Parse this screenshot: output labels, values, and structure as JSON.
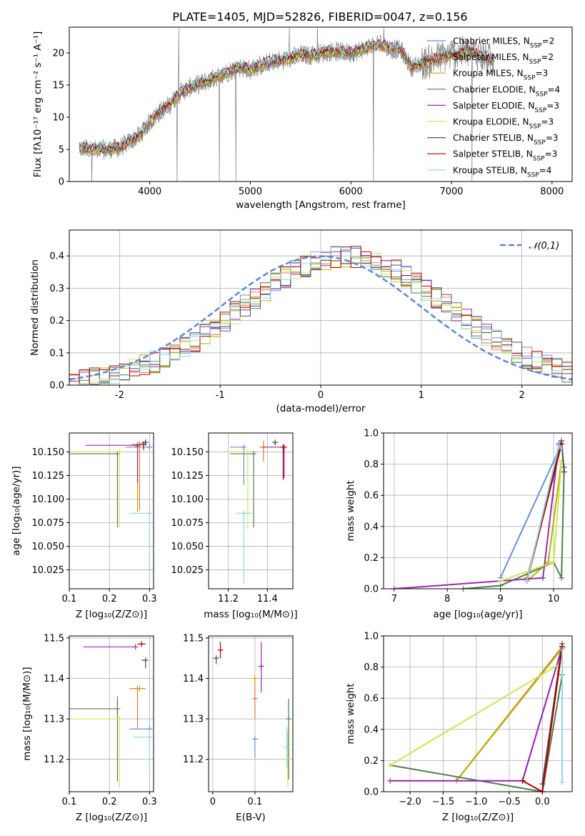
{
  "figure_title": "PLATE=1405, MJD=52826, FIBERID=0047, z=0.156",
  "colors": {
    "c1": "#6a8fd8",
    "c2": "#e07a3a",
    "c3": "#b8b000",
    "c4": "#4f7f4f",
    "c5": "#9c27b0",
    "c6": "#cde84a",
    "c7": "#505050",
    "c8": "#b00000",
    "c9": "#8fd6e6",
    "data": "#808080",
    "grid": "#b0b0b0",
    "normal": "#5b86d6"
  },
  "chart_data": [
    {
      "id": "spectrum",
      "type": "line",
      "xlabel": "wavelength [Angstrom, rest frame]",
      "ylabel": "Flux [fλ10⁻¹⁷ erg cm⁻² s⁻¹ A⁻¹]",
      "xlim": [
        3200,
        8200
      ],
      "ylim": [
        0,
        24
      ],
      "xticks": [
        4000,
        5000,
        6000,
        7000,
        8000
      ],
      "yticks": [
        0,
        5,
        10,
        15,
        20
      ],
      "grid": false,
      "legend": "top-right",
      "x": [
        3300,
        3500,
        3700,
        3900,
        4000,
        4100,
        4200,
        4300,
        4400,
        4500,
        4600,
        4700,
        4800,
        4900,
        5000,
        5200,
        5400,
        5500,
        5600,
        5800,
        6000,
        6200,
        6300,
        6400,
        6500,
        6600,
        6800,
        7000,
        7200,
        7400
      ],
      "model": [
        5.2,
        4.9,
        5.2,
        7.2,
        9.2,
        10.8,
        12.0,
        13.8,
        14.6,
        15.2,
        15.8,
        16.5,
        17.2,
        17.8,
        17.4,
        18.6,
        19.2,
        19.7,
        19.6,
        20.3,
        20.0,
        21.0,
        21.3,
        20.6,
        20.4,
        17.8,
        18.8,
        19.8,
        20.2,
        18.8
      ],
      "series": [
        {
          "name": "Chabrier MILES, N_SSP=2",
          "color_key": "c1"
        },
        {
          "name": "Salpeter MILES, N_SSP=2",
          "color_key": "c2"
        },
        {
          "name": "Kroupa MILES, N_SSP=3",
          "color_key": "c3"
        },
        {
          "name": "Chabrier ELODIE, N_SSP=4",
          "color_key": "c4"
        },
        {
          "name": "Salpeter ELODIE, N_SSP=3",
          "color_key": "c5"
        },
        {
          "name": "Kroupa ELODIE, N_SSP=3",
          "color_key": "c6"
        },
        {
          "name": "Chabrier STELIB, N_SSP=3",
          "color_key": "c7"
        },
        {
          "name": "Salpeter STELIB, N_SSP=3",
          "color_key": "c8"
        },
        {
          "name": "Kroupa STELIB, N_SSP=4",
          "color_key": "c9"
        }
      ]
    },
    {
      "id": "residuals",
      "type": "line",
      "xlabel": "(data-model)/error",
      "ylabel": "Normed distribution",
      "xlim": [
        -2.5,
        2.5
      ],
      "ylim": [
        0,
        0.48
      ],
      "xticks": [
        -2,
        -1,
        0,
        1,
        2
      ],
      "yticks": [
        0.0,
        0.1,
        0.2,
        0.3,
        0.4
      ],
      "grid": true,
      "legend": "top-right",
      "reference_label": "𝒩(0,1)",
      "bin_width": 0.1
    },
    {
      "id": "age_vs_Z",
      "type": "scatter",
      "xlabel": "Z [log₁₀(Z/Z⊙)]",
      "ylabel": "age  [log₁₀(age/yr)]",
      "xlim": [
        0.1,
        0.31
      ],
      "ylim": [
        10.005,
        10.17
      ],
      "xticks": [
        0.1,
        0.2,
        0.3
      ],
      "yticks": [
        10.025,
        10.05,
        10.075,
        10.1,
        10.125,
        10.15
      ],
      "ytick_labels": [
        "10.025",
        "10.050",
        "10.075",
        "10.100",
        "10.125",
        "10.150"
      ],
      "grid": true,
      "points": [
        {
          "color_key": "c1",
          "x": 0.3,
          "y": 10.155,
          "xerr": [
            0.06,
            0.0
          ],
          "yerr": [
            0.0,
            0.005
          ]
        },
        {
          "color_key": "c2",
          "x": 0.275,
          "y": 10.158,
          "xerr": [
            0.02,
            0.0
          ],
          "yerr": [
            0.07,
            0.0
          ]
        },
        {
          "color_key": "c3",
          "x": 0.27,
          "y": 10.156,
          "xerr": [
            0.0,
            0.0
          ],
          "yerr": [
            0.07,
            0.0
          ]
        },
        {
          "color_key": "c4",
          "x": 0.22,
          "y": 10.148,
          "xerr": [
            0.12,
            0.0
          ],
          "yerr": [
            0.078,
            0.0
          ]
        },
        {
          "color_key": "c5",
          "x": 0.27,
          "y": 10.157,
          "xerr": [
            0.13,
            0.0
          ],
          "yerr": [
            0.04,
            0.0
          ]
        },
        {
          "color_key": "c6",
          "x": 0.225,
          "y": 10.15,
          "xerr": [
            0.12,
            0.0
          ],
          "yerr": [
            0.08,
            0.0
          ]
        },
        {
          "color_key": "c7",
          "x": 0.29,
          "y": 10.16,
          "xerr": [
            0.01,
            0.0
          ],
          "yerr": [
            0.003,
            0.003
          ]
        },
        {
          "color_key": "c8",
          "x": 0.285,
          "y": 10.158,
          "xerr": [
            0.01,
            0.0
          ],
          "yerr": [
            0.006,
            0.0
          ]
        },
        {
          "color_key": "c9",
          "x": 0.3,
          "y": 10.085,
          "xerr": [
            0.05,
            0.0
          ],
          "yerr": [
            0.075,
            0.008
          ]
        }
      ]
    },
    {
      "id": "age_vs_mass",
      "type": "scatter",
      "xlabel": "mass [log₁₀(M/M⊙)]",
      "ylabel": "",
      "xlim": [
        11.1,
        11.53
      ],
      "ylim": [
        10.005,
        10.17
      ],
      "xticks": [
        11.2,
        11.4
      ],
      "yticks": [
        10.025,
        10.05,
        10.075,
        10.1,
        10.125,
        10.15
      ],
      "ytick_labels": [
        "10.025",
        "10.050",
        "10.075",
        "10.100",
        "10.125",
        "10.150"
      ],
      "grid": true,
      "points": [
        {
          "color_key": "c1",
          "x": 11.28,
          "y": 10.155,
          "xerr": [
            0.07,
            0.0
          ],
          "yerr": [
            0.04,
            0.0
          ]
        },
        {
          "color_key": "c2",
          "x": 11.38,
          "y": 10.155,
          "xerr": [
            0.02,
            0.0
          ],
          "yerr": [
            0.015,
            0.007
          ]
        },
        {
          "color_key": "c3",
          "x": 11.44,
          "y": 10.16,
          "xerr": [
            0.0,
            0.0
          ],
          "yerr": [
            0.0,
            0.0
          ]
        },
        {
          "color_key": "c4",
          "x": 11.33,
          "y": 10.148,
          "xerr": [
            0.12,
            0.0
          ],
          "yerr": [
            0.078,
            0.0
          ]
        },
        {
          "color_key": "c5",
          "x": 11.48,
          "y": 10.155,
          "xerr": [
            0.1,
            0.0
          ],
          "yerr": [
            0.035,
            0.0
          ]
        },
        {
          "color_key": "c6",
          "x": 11.3,
          "y": 10.15,
          "xerr": [
            0.1,
            0.0
          ],
          "yerr": [
            0.082,
            0.0
          ]
        },
        {
          "color_key": "c7",
          "x": 11.44,
          "y": 10.16,
          "xerr": [
            0.01,
            0.0
          ],
          "yerr": [
            0.003,
            0.0
          ]
        },
        {
          "color_key": "c8",
          "x": 11.485,
          "y": 10.155,
          "xerr": [
            0.01,
            0.0
          ],
          "yerr": [
            0.033,
            0.0
          ]
        },
        {
          "color_key": "c9",
          "x": 11.28,
          "y": 10.085,
          "xerr": [
            0.04,
            0.04
          ],
          "yerr": [
            0.075,
            0.0
          ]
        }
      ]
    },
    {
      "id": "mass_weight_vs_age",
      "type": "line",
      "xlabel": "age  [log₁₀(age/yr)]",
      "ylabel": "mass weight",
      "xlim": [
        6.8,
        10.35
      ],
      "ylim": [
        0,
        1.0
      ],
      "xticks": [
        7,
        8,
        9,
        10
      ],
      "yticks": [
        0.0,
        0.2,
        0.4,
        0.6,
        0.8,
        1.0
      ],
      "grid": true,
      "series": [
        {
          "color_key": "c1",
          "x": [
            9.0,
            10.15
          ],
          "y": [
            0.07,
            0.93
          ]
        },
        {
          "color_key": "c2",
          "x": [
            9.5,
            10.15
          ],
          "y": [
            0.07,
            0.93
          ]
        },
        {
          "color_key": "c3",
          "x": [
            9.5,
            9.9,
            10.15
          ],
          "y": [
            0.05,
            0.17,
            0.82
          ]
        },
        {
          "color_key": "c4",
          "x": [
            8.3,
            9.0,
            10.0,
            10.15,
            10.2
          ],
          "y": [
            0.0,
            0.02,
            0.17,
            0.07,
            0.78
          ]
        },
        {
          "color_key": "c5",
          "x": [
            7.0,
            9.8,
            10.1
          ],
          "y": [
            0.0,
            0.07,
            0.93
          ]
        },
        {
          "color_key": "c6",
          "x": [
            9.0,
            10.0,
            10.15
          ],
          "y": [
            0.05,
            0.17,
            0.82
          ]
        },
        {
          "color_key": "c7",
          "x": [
            9.5,
            10.15,
            10.2
          ],
          "y": [
            0.05,
            0.95,
            0.75
          ]
        },
        {
          "color_key": "c8",
          "x": [
            9.5,
            10.15
          ],
          "y": [
            0.05,
            0.93
          ]
        },
        {
          "color_key": "c9",
          "x": [
            9.5,
            10.1,
            10.15
          ],
          "y": [
            0.05,
            0.92,
            0.9
          ]
        }
      ]
    },
    {
      "id": "mass_vs_Z",
      "type": "scatter",
      "xlabel": "Z [log₁₀(Z/Z⊙)]",
      "ylabel": "mass [log₁₀(M/M⊙)]",
      "xlim": [
        0.1,
        0.31
      ],
      "ylim": [
        11.12,
        11.505
      ],
      "xticks": [
        0.1,
        0.2,
        0.3
      ],
      "yticks": [
        11.2,
        11.3,
        11.4,
        11.5
      ],
      "grid": true,
      "points": [
        {
          "color_key": "c1",
          "x": 0.3,
          "y": 11.275,
          "xerr": [
            0.05,
            0.0
          ],
          "yerr": [
            0.0,
            0.0
          ]
        },
        {
          "color_key": "c2",
          "x": 0.27,
          "y": 11.375,
          "xerr": [
            0.02,
            0.02
          ],
          "yerr": [
            0.1,
            0.0
          ]
        },
        {
          "color_key": "c3",
          "x": 0.275,
          "y": 11.375,
          "xerr": [
            0.0,
            0.0
          ],
          "yerr": [
            0.0,
            0.0
          ]
        },
        {
          "color_key": "c4",
          "x": 0.22,
          "y": 11.325,
          "xerr": [
            0.12,
            0.0
          ],
          "yerr": [
            0.18,
            0.03
          ]
        },
        {
          "color_key": "c5",
          "x": 0.265,
          "y": 11.478,
          "xerr": [
            0.13,
            0.0
          ],
          "yerr": [
            0.0,
            0.0
          ]
        },
        {
          "color_key": "c6",
          "x": 0.225,
          "y": 11.3,
          "xerr": [
            0.12,
            0.0
          ],
          "yerr": [
            0.17,
            0.0
          ]
        },
        {
          "color_key": "c7",
          "x": 0.29,
          "y": 11.445,
          "xerr": [
            0.01,
            0.0
          ],
          "yerr": [
            0.02,
            0.0
          ]
        },
        {
          "color_key": "c8",
          "x": 0.28,
          "y": 11.485,
          "xerr": [
            0.01,
            0.01
          ],
          "yerr": [
            0.0,
            0.0
          ]
        },
        {
          "color_key": "c9",
          "x": 0.3,
          "y": 11.255,
          "xerr": [
            0.04,
            0.0
          ],
          "yerr": [
            0.085,
            0.02
          ]
        }
      ]
    },
    {
      "id": "mass_vs_ebv",
      "type": "scatter",
      "xlabel": "E(B-V)",
      "ylabel": "",
      "xlim": [
        -0.01,
        0.19
      ],
      "ylim": [
        11.12,
        11.505
      ],
      "xticks": [
        0.0,
        0.1
      ],
      "yticks": [
        11.2,
        11.3,
        11.4,
        11.5
      ],
      "grid": true,
      "points": [
        {
          "color_key": "c1",
          "x": 0.1,
          "y": 11.25,
          "xerr": [
            0.0,
            0.0
          ],
          "yerr": [
            0.045,
            0.0
          ]
        },
        {
          "color_key": "c2",
          "x": 0.1,
          "y": 11.35,
          "xerr": [
            0.0,
            0.0
          ],
          "yerr": [
            0.05,
            0.05
          ]
        },
        {
          "color_key": "c3",
          "x": 0.1,
          "y": 11.4,
          "xerr": [
            0.0,
            0.0
          ],
          "yerr": [
            0.0,
            0.0
          ]
        },
        {
          "color_key": "c4",
          "x": 0.18,
          "y": 11.3,
          "xerr": [
            0.0,
            0.0
          ],
          "yerr": [
            0.15,
            0.05
          ]
        },
        {
          "color_key": "c5",
          "x": 0.115,
          "y": 11.43,
          "xerr": [
            0.0,
            0.0
          ],
          "yerr": [
            0.065,
            0.06
          ]
        },
        {
          "color_key": "c6",
          "x": 0.178,
          "y": 11.2,
          "xerr": [
            0.0,
            0.0
          ],
          "yerr": [
            0.07,
            0.07
          ]
        },
        {
          "color_key": "c7",
          "x": 0.008,
          "y": 11.45,
          "xerr": [
            0.0,
            0.0
          ],
          "yerr": [
            0.015,
            0.0
          ]
        },
        {
          "color_key": "c8",
          "x": 0.018,
          "y": 11.47,
          "xerr": [
            0.0,
            0.0
          ],
          "yerr": [
            0.02,
            0.02
          ]
        },
        {
          "color_key": "c9",
          "x": 0.176,
          "y": 11.23,
          "xerr": [
            0.0,
            0.0
          ],
          "yerr": [
            0.05,
            0.05
          ]
        }
      ]
    },
    {
      "id": "mass_weight_vs_Z",
      "type": "line",
      "xlabel": "Z [log₁₀(Z/Z⊙)]",
      "ylabel": "mass weight",
      "xlim": [
        -2.4,
        0.45
      ],
      "ylim": [
        0,
        1.0
      ],
      "xticks": [
        -2.0,
        -1.5,
        -1.0,
        -0.5,
        0.0
      ],
      "xtick_labels": [
        "−2.0",
        "−1.5",
        "−1.0",
        "−0.5",
        "0.0"
      ],
      "yticks": [
        0.0,
        0.2,
        0.4,
        0.6,
        0.8,
        1.0
      ],
      "grid": true,
      "series": [
        {
          "color_key": "c1",
          "x": [
            -0.3,
            0.3
          ],
          "y": [
            0.07,
            0.93
          ]
        },
        {
          "color_key": "c2",
          "x": [
            -1.3,
            0.3
          ],
          "y": [
            0.07,
            0.93
          ]
        },
        {
          "color_key": "c3",
          "x": [
            -1.3,
            0.3
          ],
          "y": [
            0.07,
            0.92
          ]
        },
        {
          "color_key": "c4",
          "x": [
            -2.3,
            0.0,
            0.3
          ],
          "y": [
            0.17,
            0.0,
            0.75
          ]
        },
        {
          "color_key": "c5",
          "x": [
            -2.3,
            -0.3,
            0.3
          ],
          "y": [
            0.07,
            0.07,
            0.93
          ]
        },
        {
          "color_key": "c6",
          "x": [
            -2.3,
            0.3
          ],
          "y": [
            0.17,
            0.83
          ]
        },
        {
          "color_key": "c7",
          "x": [
            0.0,
            0.3
          ],
          "y": [
            0.05,
            0.95
          ]
        },
        {
          "color_key": "c8",
          "x": [
            -0.3,
            0.0,
            0.3
          ],
          "y": [
            0.07,
            0.0,
            0.93
          ]
        },
        {
          "color_key": "c9",
          "x": [
            0.3,
            0.3
          ],
          "y": [
            0.06,
            0.91
          ]
        }
      ]
    }
  ]
}
